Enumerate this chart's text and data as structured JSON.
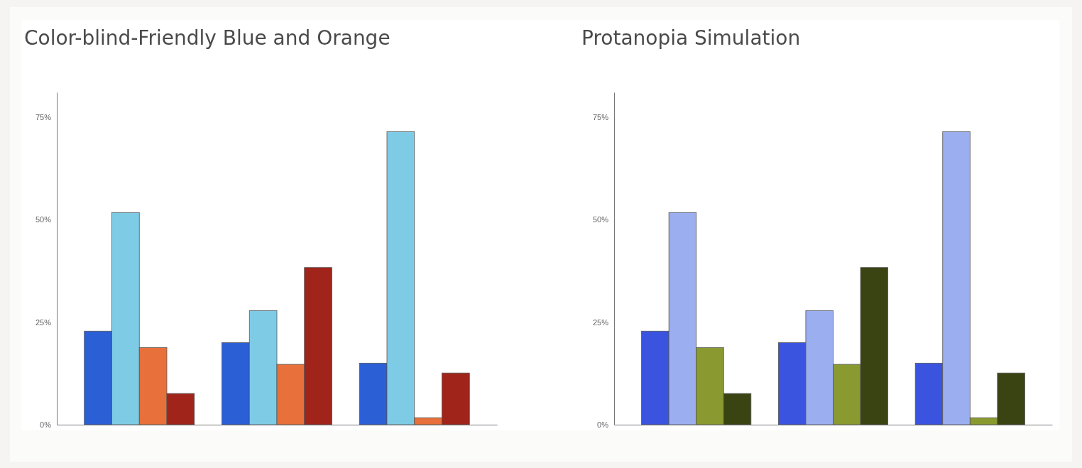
{
  "chart_data": [
    {
      "type": "bar",
      "title": "Color-blind-Friendly Blue and Orange",
      "categories": [
        null,
        null,
        null
      ],
      "series": [
        {
          "color": "#2a5fd6",
          "values": [
            22.8,
            20.0,
            15.0
          ]
        },
        {
          "color": "#7ecbe6",
          "values": [
            51.7,
            27.8,
            71.4
          ]
        },
        {
          "color": "#e8703a",
          "values": [
            18.8,
            14.7,
            1.7
          ]
        },
        {
          "color": "#a0241a",
          "values": [
            7.6,
            38.3,
            12.6
          ]
        }
      ],
      "ylim": [
        0,
        81
      ],
      "yticks": [
        {
          "value": 0,
          "label": "0%"
        },
        {
          "value": 25,
          "label": "25%"
        },
        {
          "value": 50,
          "label": "50%"
        },
        {
          "value": 75,
          "label": "75%"
        }
      ],
      "grid": false,
      "legend": false
    },
    {
      "type": "bar",
      "title": "Protanopia Simulation",
      "categories": [
        null,
        null,
        null
      ],
      "series": [
        {
          "color": "#3a54e0",
          "values": [
            22.8,
            20.0,
            15.0
          ]
        },
        {
          "color": "#9aaef0",
          "values": [
            51.7,
            27.8,
            71.4
          ]
        },
        {
          "color": "#8a9a30",
          "values": [
            18.8,
            14.7,
            1.7
          ]
        },
        {
          "color": "#3a4412",
          "values": [
            7.6,
            38.3,
            12.6
          ]
        }
      ],
      "ylim": [
        0,
        81
      ],
      "yticks": [
        {
          "value": 0,
          "label": "0%"
        },
        {
          "value": 25,
          "label": "25%"
        },
        {
          "value": 50,
          "label": "50%"
        },
        {
          "value": 75,
          "label": "75%"
        }
      ],
      "grid": false,
      "legend": false
    }
  ]
}
